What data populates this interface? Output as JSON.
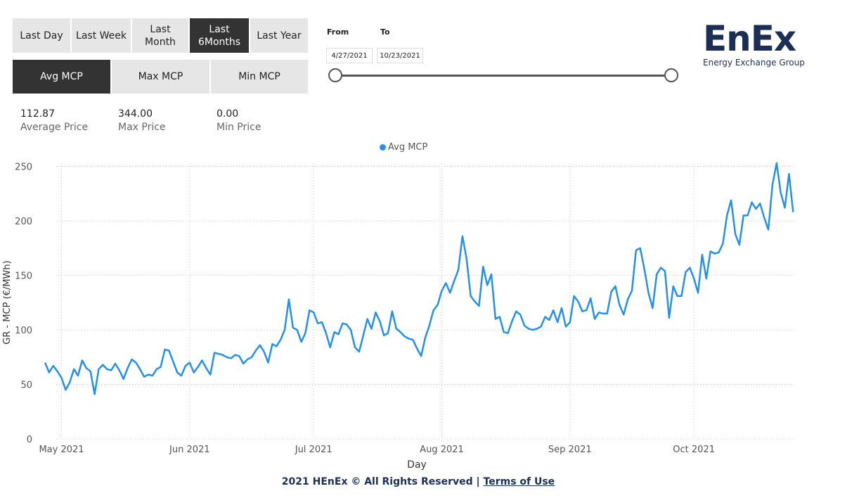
{
  "period_buttons": [
    {
      "label": "Last Day",
      "active": false
    },
    {
      "label": "Last Week",
      "active": false
    },
    {
      "label": "Last\nMonth",
      "active": false
    },
    {
      "label": "Last\n6Months",
      "active": true
    },
    {
      "label": "Last Year",
      "active": false
    }
  ],
  "measure_buttons": [
    {
      "label": "Avg MCP",
      "active": true
    },
    {
      "label": "Max MCP",
      "active": false
    },
    {
      "label": "Min MCP",
      "active": false
    }
  ],
  "stats": [
    {
      "value": "112.87",
      "label": "Average Price"
    },
    {
      "value": "344.00",
      "label": "Max Price"
    },
    {
      "value": "0.00",
      "label": "Min Price"
    }
  ],
  "date_range": {
    "from_label": "From",
    "to_label": "To",
    "from_value": "4/27/2021",
    "to_value": "10/23/2021"
  },
  "logo": {
    "mark": "EnEx",
    "subtitle": "Energy Exchange Group"
  },
  "footer": {
    "text": "2021 HEnEx © All Rights Reserved | ",
    "link": "Terms of Use"
  },
  "colors": {
    "line": "#2490ea",
    "active_button": "#333333",
    "inactive_button": "#e6e6e6",
    "brand": "#1b2f56"
  },
  "chart_data": {
    "type": "line",
    "xlabel": "Day",
    "ylabel": "GR - MCP (€/MWh)",
    "ylim": [
      0,
      260
    ],
    "yticks": [
      0,
      50,
      100,
      150,
      200,
      250
    ],
    "x_start": "2021-04-27",
    "xtick_labels": [
      {
        "label": "May 2021",
        "date": "2021-05-01"
      },
      {
        "label": "Jun 2021",
        "date": "2021-06-01"
      },
      {
        "label": "Jul 2021",
        "date": "2021-07-01"
      },
      {
        "label": "Aug 2021",
        "date": "2021-08-01"
      },
      {
        "label": "Sep 2021",
        "date": "2021-09-01"
      },
      {
        "label": "Oct 2021",
        "date": "2021-10-01"
      }
    ],
    "grid": true,
    "legend_position": "top-center",
    "series": [
      {
        "name": "Avg MCP",
        "values": [
          70,
          61,
          67,
          62,
          56,
          45,
          52,
          64,
          58,
          72,
          65,
          62,
          41,
          64,
          68,
          64,
          63,
          69,
          63,
          55,
          65,
          73,
          70,
          64,
          57,
          59,
          58,
          64,
          66,
          82,
          81,
          71,
          61,
          58,
          67,
          70,
          61,
          66,
          72,
          65,
          59,
          79,
          78,
          77,
          75,
          74,
          77,
          76,
          69,
          73,
          75,
          81,
          86,
          80,
          70,
          87,
          85,
          91,
          100,
          128,
          102,
          100,
          89,
          97,
          118,
          116,
          106,
          107,
          97,
          84,
          98,
          96,
          106,
          105,
          100,
          84,
          80,
          95,
          110,
          101,
          116,
          108,
          95,
          97,
          117,
          101,
          98,
          94,
          92,
          91,
          83,
          76,
          93,
          104,
          118,
          123,
          136,
          143,
          134,
          145,
          155,
          186,
          165,
          131,
          126,
          122,
          158,
          141,
          151,
          110,
          112,
          98,
          97,
          108,
          117,
          114,
          104,
          101,
          100,
          101,
          103,
          112,
          109,
          118,
          107,
          120,
          103,
          107,
          131,
          126,
          117,
          118,
          129,
          110,
          116,
          115,
          115,
          135,
          140,
          123,
          114,
          128,
          136,
          173,
          175,
          156,
          134,
          120,
          151,
          157,
          154,
          111,
          140,
          131,
          131,
          153,
          157,
          147,
          134,
          169,
          147,
          172,
          170,
          171,
          179,
          205,
          219,
          188,
          178,
          205,
          205,
          217,
          211,
          216,
          203,
          192,
          233,
          253,
          226,
          212,
          243,
          208
        ]
      }
    ]
  }
}
